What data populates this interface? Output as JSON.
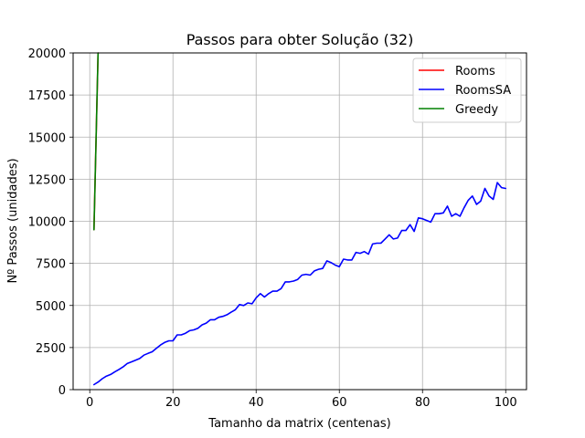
{
  "chart_data": {
    "type": "line",
    "title": "Passos para obter Solução (32)",
    "xlabel": "Tamanho da matrix (centenas)",
    "ylabel": "Nº Passos (unidades)",
    "xlim": [
      -4,
      105
    ],
    "ylim": [
      0,
      20000
    ],
    "xticks": [
      0,
      20,
      40,
      60,
      80,
      100
    ],
    "yticks": [
      0,
      2500,
      5000,
      7500,
      10000,
      12500,
      15000,
      17500,
      20000
    ],
    "grid": true,
    "legend_position": "top-right",
    "series": [
      {
        "name": "Rooms",
        "color": "#ff0000",
        "x": [
          1,
          2
        ],
        "y": [
          9500,
          20000
        ]
      },
      {
        "name": "RoomsSA",
        "color": "#0000ff",
        "x": [
          1,
          2,
          3,
          4,
          5,
          6,
          7,
          8,
          9,
          10,
          11,
          12,
          13,
          14,
          15,
          16,
          17,
          18,
          19,
          20,
          21,
          22,
          23,
          24,
          25,
          26,
          27,
          28,
          29,
          30,
          31,
          32,
          33,
          34,
          35,
          36,
          37,
          38,
          39,
          40,
          41,
          42,
          43,
          44,
          45,
          46,
          47,
          48,
          49,
          50,
          51,
          52,
          53,
          54,
          55,
          56,
          57,
          58,
          59,
          60,
          61,
          62,
          63,
          64,
          65,
          66,
          67,
          68,
          69,
          70,
          71,
          72,
          73,
          74,
          75,
          76,
          77,
          78,
          79,
          80,
          81,
          82,
          83,
          84,
          85,
          86,
          87,
          88,
          89,
          90,
          91,
          92,
          93,
          94,
          95,
          96,
          97,
          98,
          99,
          100
        ],
        "y": [
          300,
          450,
          650,
          800,
          900,
          1050,
          1200,
          1350,
          1550,
          1650,
          1750,
          1850,
          2050,
          2150,
          2250,
          2450,
          2650,
          2800,
          2900,
          2900,
          3250,
          3250,
          3350,
          3500,
          3550,
          3650,
          3850,
          3950,
          4150,
          4150,
          4300,
          4350,
          4450,
          4600,
          4750,
          5050,
          5000,
          5150,
          5100,
          5450,
          5700,
          5500,
          5700,
          5850,
          5850,
          6000,
          6400,
          6400,
          6450,
          6550,
          6800,
          6850,
          6800,
          7050,
          7150,
          7200,
          7650,
          7550,
          7400,
          7300,
          7750,
          7700,
          7700,
          8150,
          8100,
          8200,
          8050,
          8650,
          8700,
          8700,
          8950,
          9200,
          8950,
          9000,
          9450,
          9450,
          9800,
          9400,
          10200,
          10150,
          10050,
          9950,
          10450,
          10450,
          10500,
          10900,
          10300,
          10450,
          10300,
          10800,
          11250,
          11500,
          11000,
          11200,
          11950,
          11500,
          11300,
          12300,
          12000,
          11950
        ]
      },
      {
        "name": "Greedy",
        "color": "#008000",
        "x": [
          1,
          2
        ],
        "y": [
          9500,
          20000
        ]
      }
    ]
  }
}
